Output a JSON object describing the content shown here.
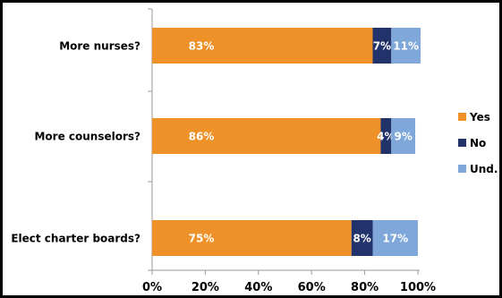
{
  "chart_data": {
    "type": "bar",
    "orientation": "horizontal",
    "stacked": true,
    "categories": [
      "More nurses?",
      "More counselors?",
      "Elect charter boards?"
    ],
    "series": [
      {
        "name": "Yes",
        "color": "#ED9128",
        "values": [
          83,
          86,
          75
        ],
        "labels": [
          "83%",
          "86%",
          "75%"
        ]
      },
      {
        "name": "No",
        "color": "#22326B",
        "values": [
          7,
          4,
          8
        ],
        "labels": [
          "7%",
          "4%",
          "8%"
        ]
      },
      {
        "name": "Und.",
        "color": "#7FA7D9",
        "values": [
          11,
          9,
          17
        ],
        "labels": [
          "11%",
          "9%",
          "17%"
        ]
      }
    ],
    "xlim": [
      0,
      100
    ],
    "x_ticks": [
      0,
      20,
      40,
      60,
      80,
      100
    ],
    "x_tick_labels": [
      "0%",
      "20%",
      "40%",
      "60%",
      "80%",
      "100%"
    ],
    "grid": false,
    "legend_position": "right"
  }
}
